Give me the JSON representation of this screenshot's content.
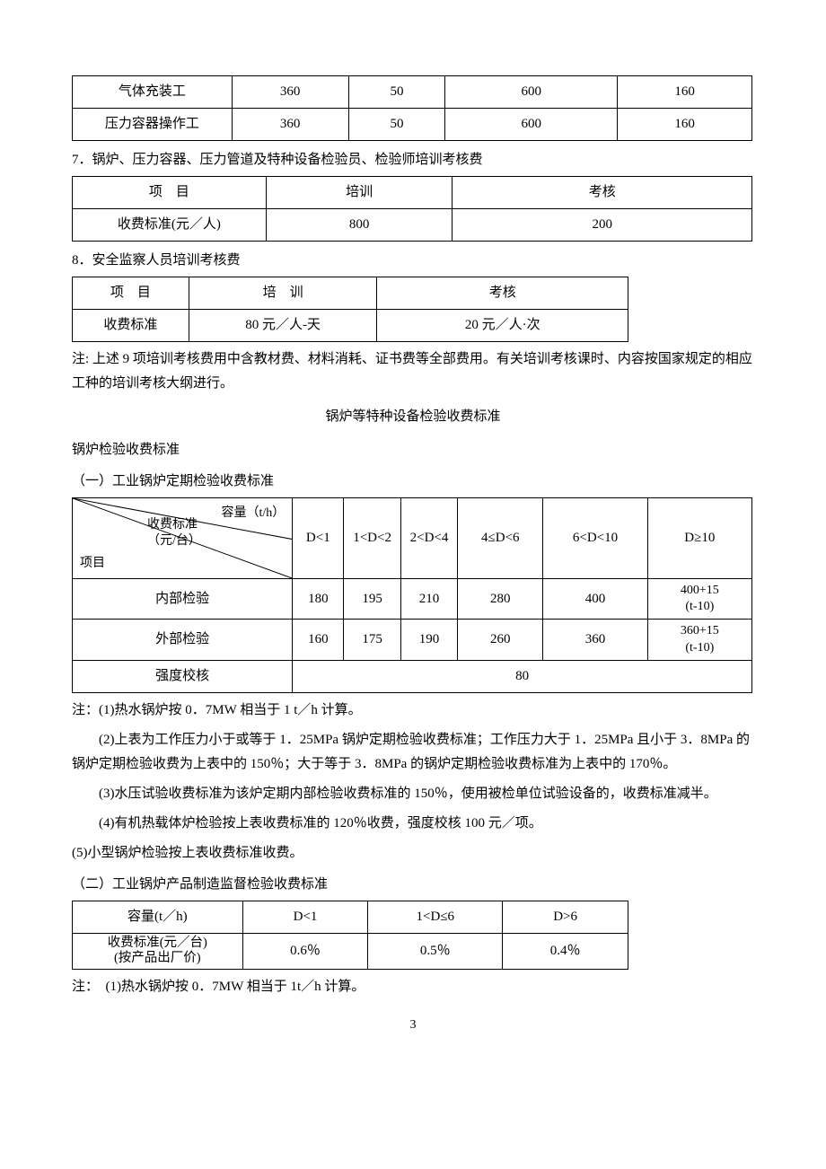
{
  "table1": {
    "rows": [
      {
        "label": "气体充装工",
        "v1": "360",
        "v2": "50",
        "v3": "600",
        "v4": "160"
      },
      {
        "label": "压力容器操作工",
        "v1": "360",
        "v2": "50",
        "v3": "600",
        "v4": "160"
      }
    ]
  },
  "section7": {
    "title": "7．锅炉、压力容器、压力管道及特种设备检验员、检验师培训考核费",
    "headers": {
      "c1": "项　目",
      "c2": "培训",
      "c3": "考核"
    },
    "row": {
      "c1": "收费标准(元／人)",
      "c2": "800",
      "c3": "200"
    }
  },
  "section8": {
    "title": "8．安全监察人员培训考核费",
    "headers": {
      "c1": "项　目",
      "c2": "培　训",
      "c3": "考核"
    },
    "row": {
      "c1": "收费标准",
      "c2": "80 元／人-天",
      "c3": "20 元／人·次"
    }
  },
  "note_after8": "注: 上述 9 项培训考核费用中含教材费、材料消耗、证书费等全部费用。有关培训考核课时、内容按国家规定的相应工种的培训考核大纲进行。",
  "heading_main": "锅炉等特种设备检验收费标准",
  "heading_sub": "锅炉检验收费标准",
  "sectionA": {
    "title": "（一）工业锅炉定期检验收费标准",
    "diag": {
      "top": "容量（t/h）",
      "mid": "收费标准\n（元/台）",
      "bottom": "项目"
    },
    "cols": [
      "D<1",
      "1<D<2",
      "2<D<4",
      "4≤D<6",
      "6<D<10",
      "D≥10"
    ],
    "rows": [
      {
        "label": "内部检验",
        "v": [
          "180",
          "195",
          "210",
          "280",
          "400",
          "400+15\n(t-10)"
        ]
      },
      {
        "label": "外部检验",
        "v": [
          "160",
          "175",
          "190",
          "260",
          "360",
          "360+15\n(t-10)"
        ]
      }
    ],
    "strength_label": "强度校核",
    "strength_value": "80"
  },
  "notesA": {
    "n1_prefix": "注：",
    "n1": "(1)热水锅炉按 0．7MW 相当于 1 t／h 计算。",
    "n2": "(2)上表为工作压力小于或等于 1．25MPa 锅炉定期检验收费标准；工作压力大于 1．25MPa 且小于 3．8MPa 的锅炉定期检验收费为上表中的 150％；大于等于 3．8MPa 的锅炉定期检验收费标准为上表中的 170％。",
    "n3": "(3)水压试验收费标准为该炉定期内部检验收费标准的 150％，使用被检单位试验设备的，收费标准减半。",
    "n4": "(4)有机热载体炉检验按上表收费标准的 120％收费，强度校核 100 元／项。",
    "n5": "(5)小型锅炉检验按上表收费标准收费。"
  },
  "sectionB": {
    "title": "（二）工业锅炉产品制造监督检验收费标准",
    "headers": {
      "c1": "容量(t／h)",
      "c2": "D<1",
      "c3": "1<D≤6",
      "c4": "D>6"
    },
    "row": {
      "c1": "收费标准(元／台)\n(按产品出厂价)",
      "c2": "0.6％",
      "c3": "0.5％",
      "c4": "0.4％"
    }
  },
  "noteB": {
    "prefix": "注：　",
    "text": "(1)热水锅炉按 0．7MW 相当于 1t／h 计算。"
  },
  "page_number": "3"
}
